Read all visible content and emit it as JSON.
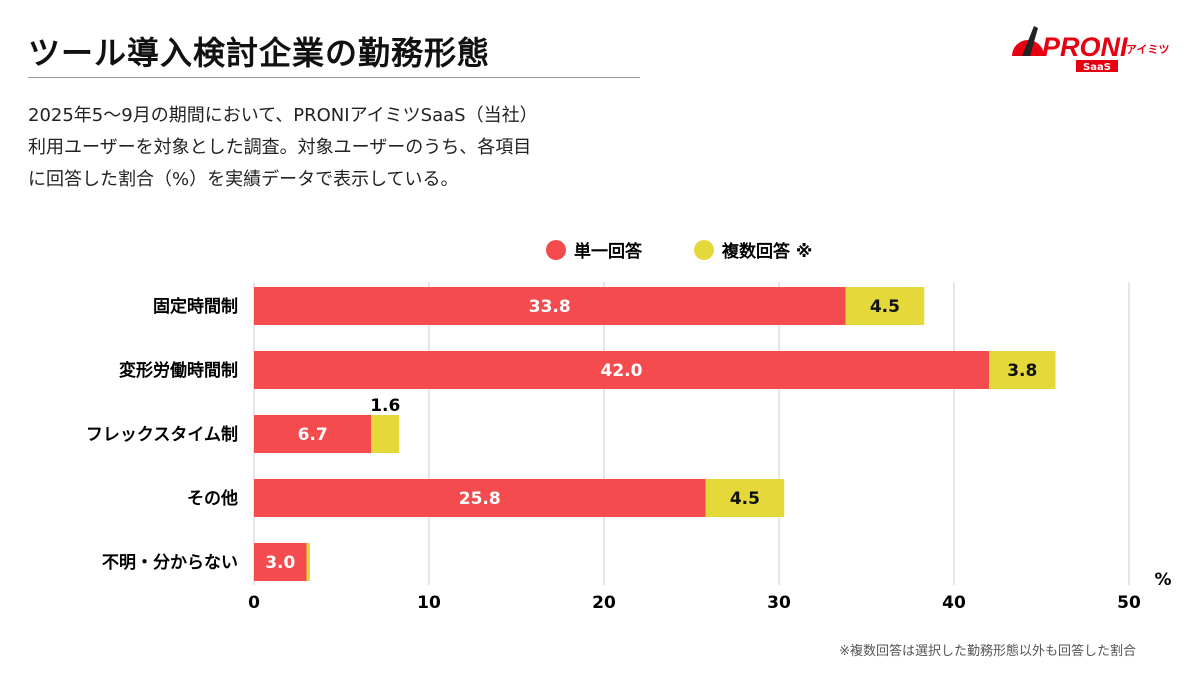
{
  "title": "ツール導入検討企業の勤務形態",
  "description": [
    "2025年5〜9月の期間において、PRONIアイミツSaaS（当社）",
    "利用ユーザーを対象とした調査。対象ユーザーのうち、各項目",
    "に回答した割合（%）を実績データで表示している。"
  ],
  "logo": {
    "text": "PRONI",
    "sub": "アイミツ",
    "badge": "SaaS"
  },
  "footnote": "※複数回答は選択した勤務形態以外も回答した割合",
  "chart_data": {
    "type": "bar",
    "orientation": "horizontal",
    "stacked": true,
    "categories": [
      "固定時間制",
      "変形労働時間制",
      "フレックスタイム制",
      "その他",
      "不明・分からない"
    ],
    "series": [
      {
        "name": "単一回答",
        "color": "#f44b4e",
        "values": [
          33.8,
          42.0,
          6.7,
          25.8,
          3.0
        ]
      },
      {
        "name": "複数回答 ※",
        "color": "#e5d83a",
        "values": [
          4.5,
          3.8,
          1.6,
          4.5,
          0.2
        ]
      }
    ],
    "labels_shown": [
      [
        true,
        true
      ],
      [
        true,
        true
      ],
      [
        true,
        true
      ],
      [
        true,
        true
      ],
      [
        true,
        false
      ]
    ],
    "xlim": [
      0,
      50
    ],
    "xticks": [
      0,
      10,
      20,
      30,
      40,
      50
    ],
    "xunit": "%",
    "grid": true,
    "legend": "top"
  }
}
